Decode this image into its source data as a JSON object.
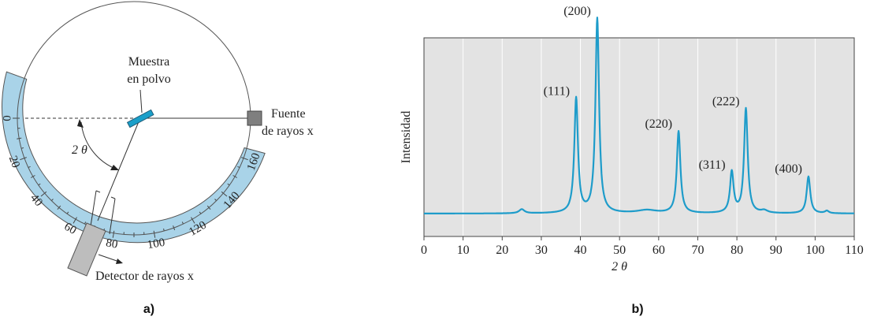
{
  "panel_a": {
    "caption": "a)",
    "sample_label_line1": "Muestra",
    "sample_label_line2": "en polvo",
    "source_label_line1": "Fuente",
    "source_label_line2": "de rayos x",
    "detector_label": "Detector de rayos x",
    "angle_label": "2 θ",
    "scale_ticks": [
      "0",
      "20",
      "40",
      "60",
      "80",
      "100",
      "120",
      "140",
      "160"
    ],
    "colors": {
      "scale": "#a9d3e8",
      "sample": "#1a9fc9",
      "source": "#7f7f7f",
      "detector": "#bdbdbd"
    }
  },
  "panel_b": {
    "caption": "b)"
  },
  "chart_data": {
    "type": "line",
    "xlabel": "2 θ",
    "ylabel": "Intensidad",
    "xlim": [
      0,
      110
    ],
    "xticks": [
      0,
      10,
      20,
      30,
      40,
      50,
      60,
      70,
      80,
      90,
      100,
      110
    ],
    "grid": "vertical",
    "line_color": "#1e9cca",
    "background": "#e3e3e3",
    "peaks": [
      {
        "label": "(111)",
        "x": 38.9,
        "y": 0.56
      },
      {
        "label": "(200)",
        "x": 44.3,
        "y": 0.95
      },
      {
        "label": "(220)",
        "x": 65.1,
        "y": 0.4
      },
      {
        "label": "(311)",
        "x": 78.7,
        "y": 0.2
      },
      {
        "label": "(222)",
        "x": 82.3,
        "y": 0.51
      },
      {
        "label": "(400)",
        "x": 98.3,
        "y": 0.18
      }
    ]
  }
}
